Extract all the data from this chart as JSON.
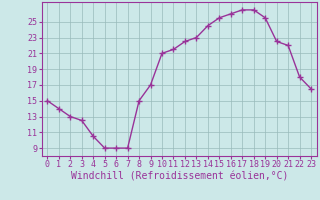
{
  "x": [
    0,
    1,
    2,
    3,
    4,
    5,
    6,
    7,
    8,
    9,
    10,
    11,
    12,
    13,
    14,
    15,
    16,
    17,
    18,
    19,
    20,
    21,
    22,
    23
  ],
  "y": [
    15,
    14,
    13,
    12.5,
    10.5,
    9,
    9,
    9,
    15,
    17,
    21,
    21.5,
    22.5,
    23,
    24.5,
    25.5,
    26,
    26.5,
    26.5,
    25.5,
    22.5,
    22,
    18,
    16.5
  ],
  "line_color": "#993399",
  "marker": "+",
  "marker_size": 4,
  "marker_lw": 1.0,
  "bg_color": "#cce8e8",
  "grid_color": "#99bbbb",
  "xlabel": "Windchill (Refroidissement éolien,°C)",
  "xlabel_color": "#993399",
  "xlabel_fontsize": 7,
  "yticks": [
    9,
    11,
    13,
    15,
    17,
    19,
    21,
    23,
    25
  ],
  "xticks": [
    0,
    1,
    2,
    3,
    4,
    5,
    6,
    7,
    8,
    9,
    10,
    11,
    12,
    13,
    14,
    15,
    16,
    17,
    18,
    19,
    20,
    21,
    22,
    23
  ],
  "ylim": [
    8.0,
    27.5
  ],
  "xlim": [
    -0.5,
    23.5
  ],
  "tick_color": "#993399",
  "tick_fontsize": 6,
  "spine_color": "#993399",
  "linewidth": 1.0
}
